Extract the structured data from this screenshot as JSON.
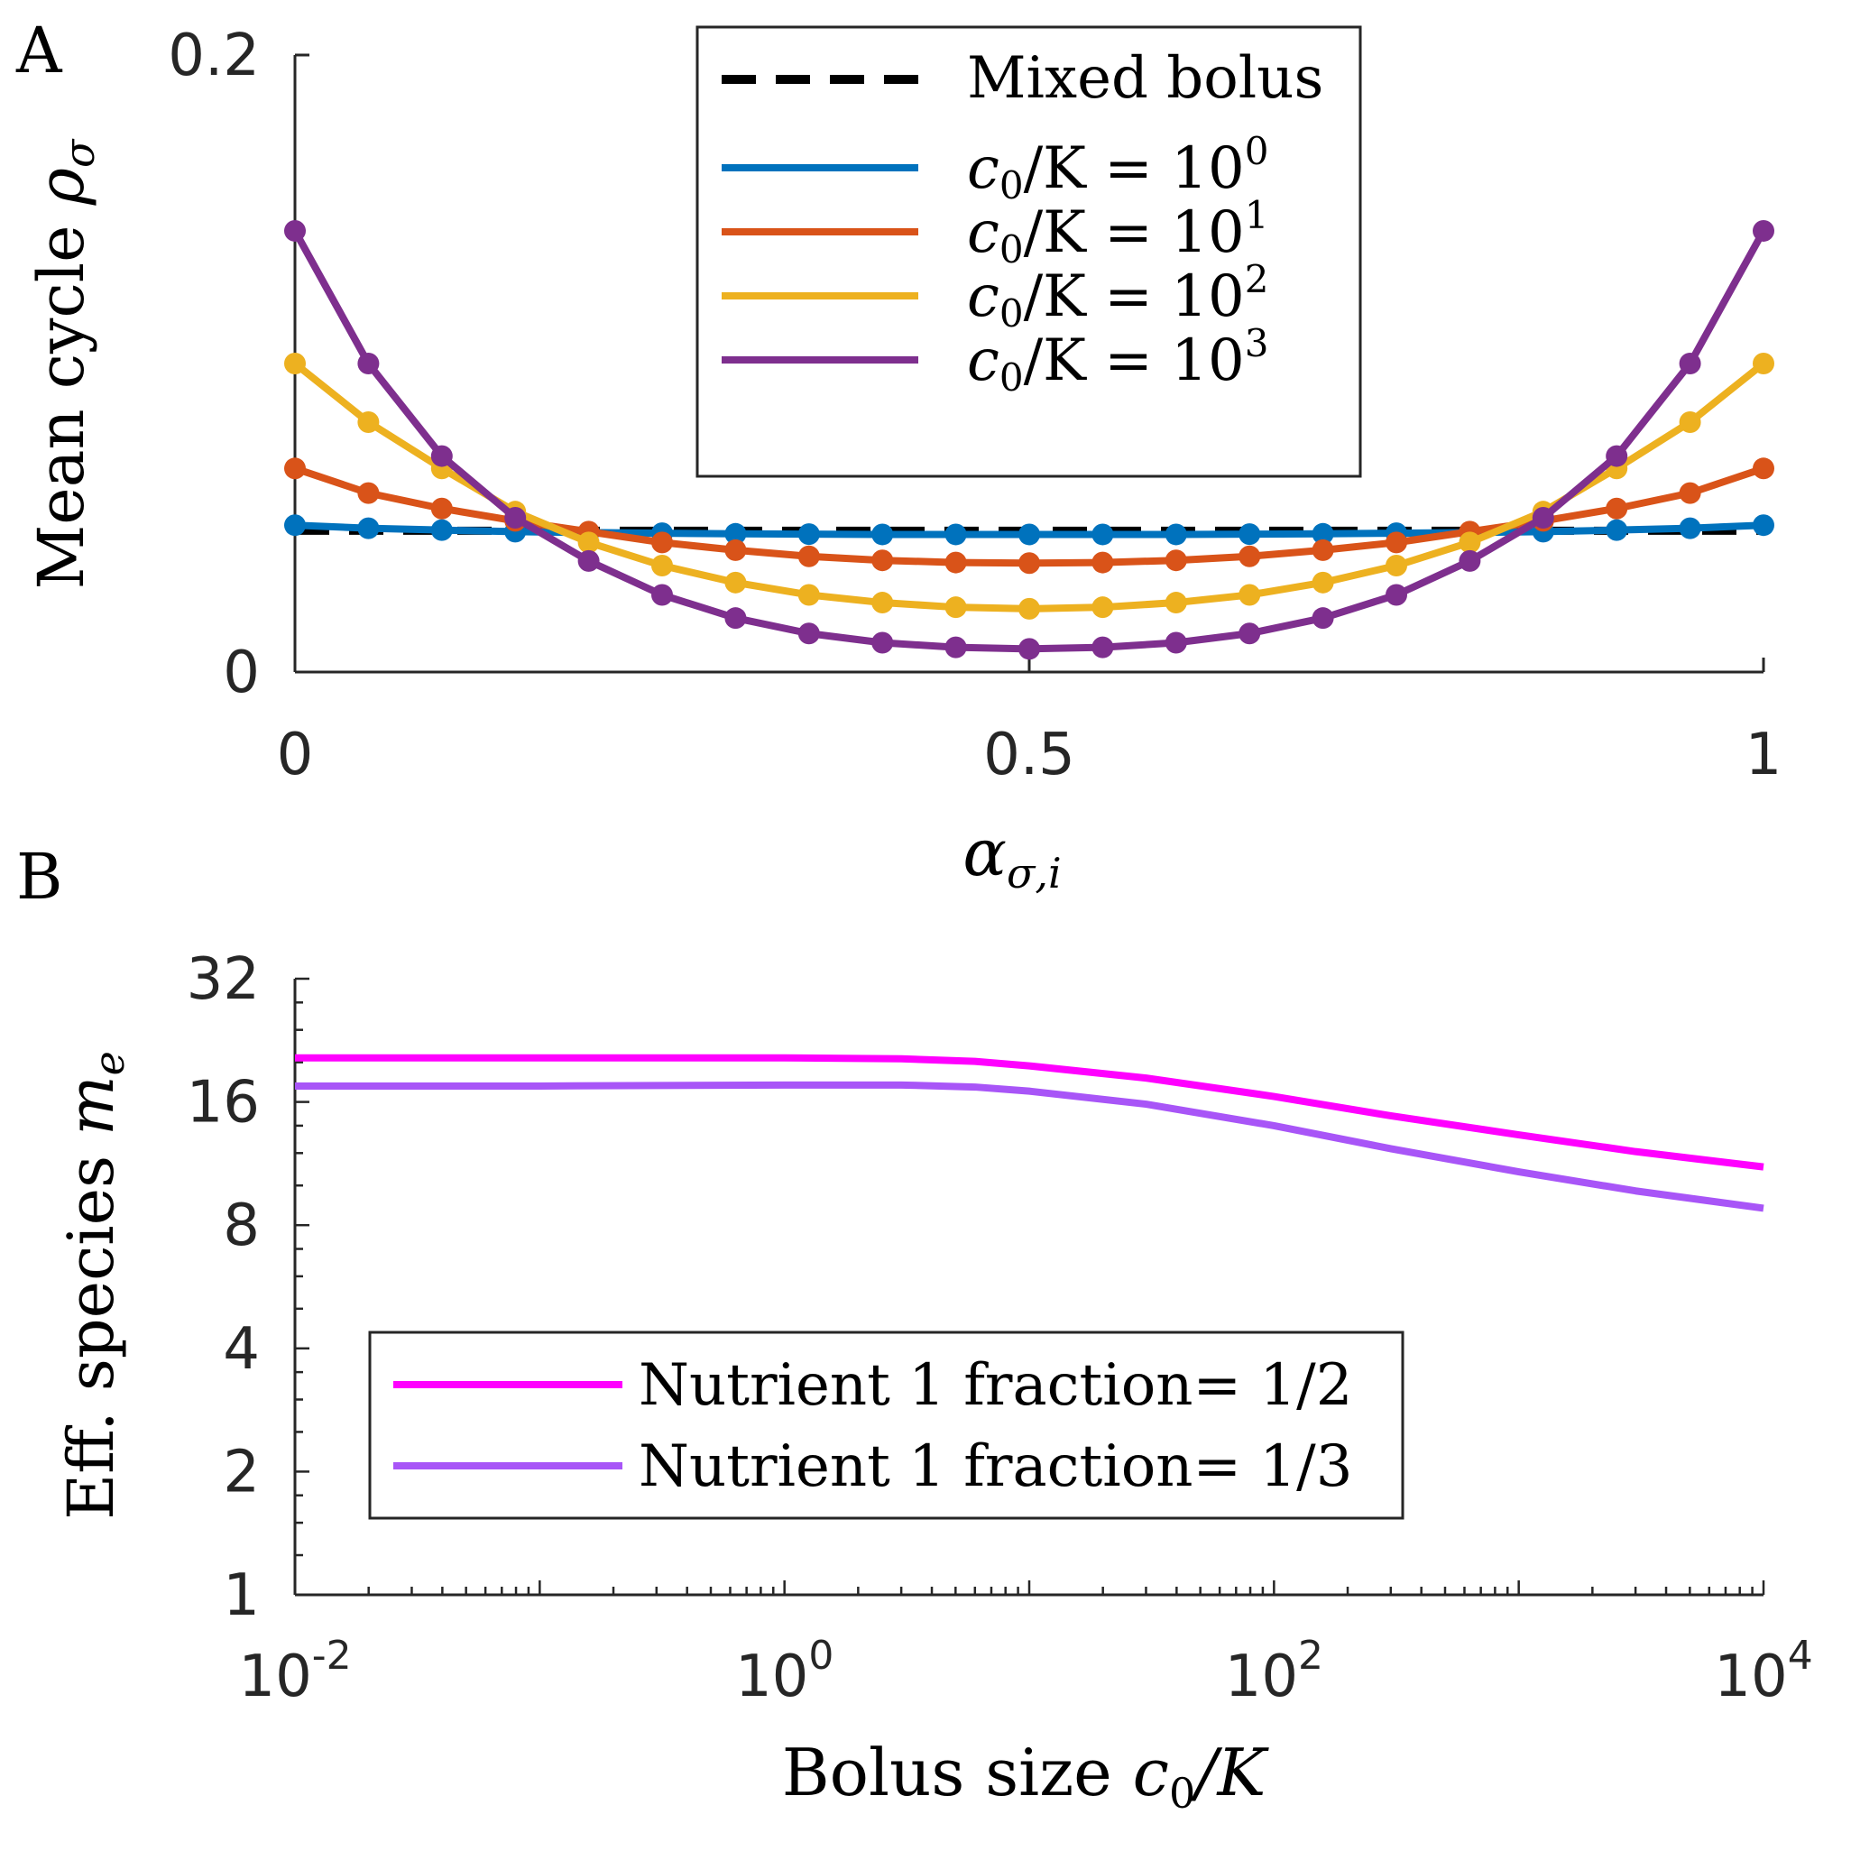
{
  "chart_data": [
    {
      "panel": "A",
      "type": "line",
      "xlabel": "α",
      "xlabel_sub": "σ,i",
      "ylabel": "Mean cycle ",
      "ylabel_math": "ρ",
      "ylabel_sub": "σ",
      "xlim": [
        0,
        1
      ],
      "ylim": [
        0,
        0.2
      ],
      "xticks": [
        "0",
        "0.5",
        "1"
      ],
      "yticks": [
        "0",
        "0.2"
      ],
      "x": [
        0,
        0.05,
        0.1,
        0.15,
        0.2,
        0.25,
        0.3,
        0.35,
        0.4,
        0.45,
        0.5,
        0.55,
        0.6,
        0.65,
        0.7,
        0.75,
        0.8,
        0.85,
        0.9,
        0.95,
        1
      ],
      "mixed_bolus": 0.0458,
      "legend": {
        "mixed": "Mixed bolus",
        "prefix": "c",
        "prefix_sub": "0",
        "middle": "/K = 10"
      },
      "series": [
        {
          "name": "c0/K = 10^0",
          "exp": "0",
          "color": "#0072BD",
          "values": [
            0.0476,
            0.0466,
            0.046,
            0.0455,
            0.0452,
            0.045,
            0.0448,
            0.0447,
            0.0446,
            0.0446,
            0.0446,
            0.0446,
            0.0446,
            0.0447,
            0.0448,
            0.045,
            0.0452,
            0.0455,
            0.046,
            0.0466,
            0.0476
          ]
        },
        {
          "name": "c0/K = 10^1",
          "exp": "1",
          "color": "#D95319",
          "values": [
            0.066,
            0.058,
            0.053,
            0.049,
            0.0455,
            0.042,
            0.0395,
            0.0375,
            0.0362,
            0.0355,
            0.0353,
            0.0355,
            0.0362,
            0.0375,
            0.0395,
            0.042,
            0.0455,
            0.049,
            0.053,
            0.058,
            0.066
          ]
        },
        {
          "name": "c0/K = 10^2",
          "exp": "2",
          "color": "#EDB120",
          "values": [
            0.1,
            0.081,
            0.066,
            0.052,
            0.042,
            0.0345,
            0.029,
            0.025,
            0.0225,
            0.021,
            0.0205,
            0.021,
            0.0225,
            0.025,
            0.029,
            0.0345,
            0.042,
            0.052,
            0.066,
            0.081,
            0.1
          ]
        },
        {
          "name": "c0/K = 10^3",
          "exp": "3",
          "color": "#7E2F8E",
          "values": [
            0.143,
            0.1,
            0.07,
            0.05,
            0.036,
            0.025,
            0.0175,
            0.0125,
            0.0095,
            0.008,
            0.0075,
            0.008,
            0.0095,
            0.0125,
            0.0175,
            0.025,
            0.036,
            0.05,
            0.07,
            0.1,
            0.143
          ]
        }
      ]
    },
    {
      "panel": "B",
      "type": "line",
      "xscale": "log10",
      "yscale": "log2",
      "xlabel": "Bolus size ",
      "xlabel_math": "c",
      "xlabel_sub": "0",
      "xlabel_tail": "/K",
      "ylabel": "Eff. species ",
      "ylabel_math": "m",
      "ylabel_sub": "e",
      "xlim": [
        0.01,
        10000
      ],
      "ylim": [
        1,
        32
      ],
      "xticks": [
        {
          "base": "10",
          "exp": "-2"
        },
        {
          "base": "10",
          "exp": "0"
        },
        {
          "base": "10",
          "exp": "2"
        },
        {
          "base": "10",
          "exp": "4"
        }
      ],
      "yticks": [
        "1",
        "2",
        "4",
        "8",
        "16",
        "32"
      ],
      "x": [
        0.01,
        0.1,
        1,
        3,
        6,
        10,
        30,
        100,
        300,
        1000,
        3000,
        10000
      ],
      "series": [
        {
          "name": "Nutrient 1 fraction= 1/2",
          "label": "Nutrient 1 fraction= 1/2",
          "color": "#FF00FF",
          "values": [
            20.5,
            20.5,
            20.5,
            20.4,
            20.1,
            19.6,
            18.3,
            16.5,
            14.8,
            13.3,
            12.1,
            11.1
          ]
        },
        {
          "name": "Nutrient 1 fraction= 1/3",
          "label": "Nutrient 1 fraction= 1/3",
          "color": "#A855F7",
          "values": [
            17.5,
            17.5,
            17.6,
            17.6,
            17.4,
            17.0,
            15.8,
            14.0,
            12.3,
            10.8,
            9.7,
            8.8
          ]
        }
      ]
    }
  ],
  "panel_labels": [
    "A",
    "B"
  ]
}
